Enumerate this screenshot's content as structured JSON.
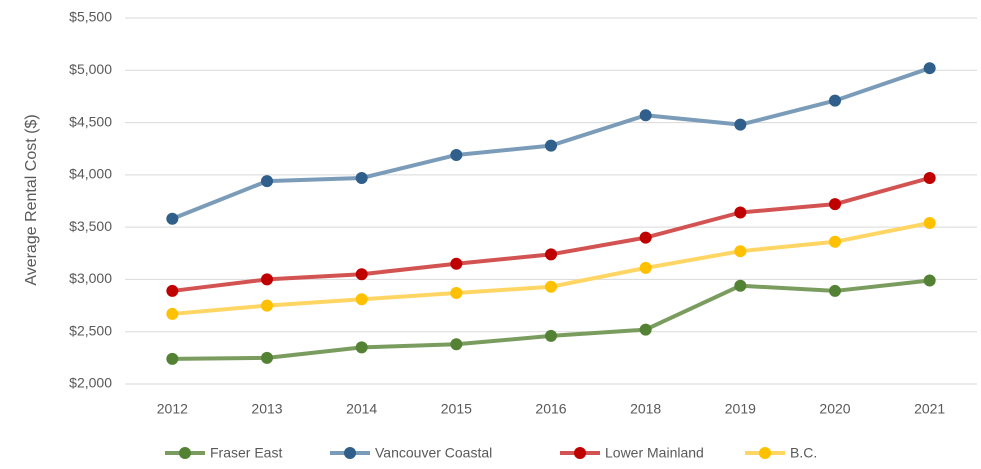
{
  "chart_data": {
    "type": "line",
    "ylabel": "Average Rental Cost ($)",
    "categories": [
      "2012",
      "2013",
      "2014",
      "2015",
      "2016",
      "2018",
      "2019",
      "2020",
      "2021"
    ],
    "series": [
      {
        "name": "Fraser East",
        "color": "#7a9c5e",
        "marker_color": "#548235",
        "values": [
          2240,
          2250,
          2350,
          2380,
          2460,
          2520,
          2940,
          2890,
          2990
        ]
      },
      {
        "name": "Vancouver Coastal",
        "color": "#7b9cb9",
        "marker_color": "#2f5f8a",
        "values": [
          3580,
          3940,
          3970,
          4190,
          4280,
          4570,
          4480,
          4710,
          5020
        ]
      },
      {
        "name": "Lower Mainland",
        "color": "#d25352",
        "marker_color": "#c00000",
        "values": [
          2890,
          3000,
          3050,
          3150,
          3240,
          3400,
          3640,
          3720,
          3970
        ]
      },
      {
        "name": "B.C.",
        "color": "#ffd563",
        "marker_color": "#ffc000",
        "values": [
          2670,
          2750,
          2810,
          2870,
          2930,
          3110,
          3270,
          3360,
          3540
        ]
      }
    ],
    "ylim": [
      2000,
      5500
    ],
    "yticks": [
      {
        "value": 2000,
        "label": "$2,000"
      },
      {
        "value": 2500,
        "label": "$2,500"
      },
      {
        "value": 3000,
        "label": "$3,000"
      },
      {
        "value": 3500,
        "label": "$3,500"
      },
      {
        "value": 4000,
        "label": "$4,000"
      },
      {
        "value": 4500,
        "label": "$4,500"
      },
      {
        "value": 5000,
        "label": "$5,000"
      },
      {
        "value": 5500,
        "label": "$5,500"
      }
    ],
    "grid": true,
    "legend": "bottom"
  }
}
